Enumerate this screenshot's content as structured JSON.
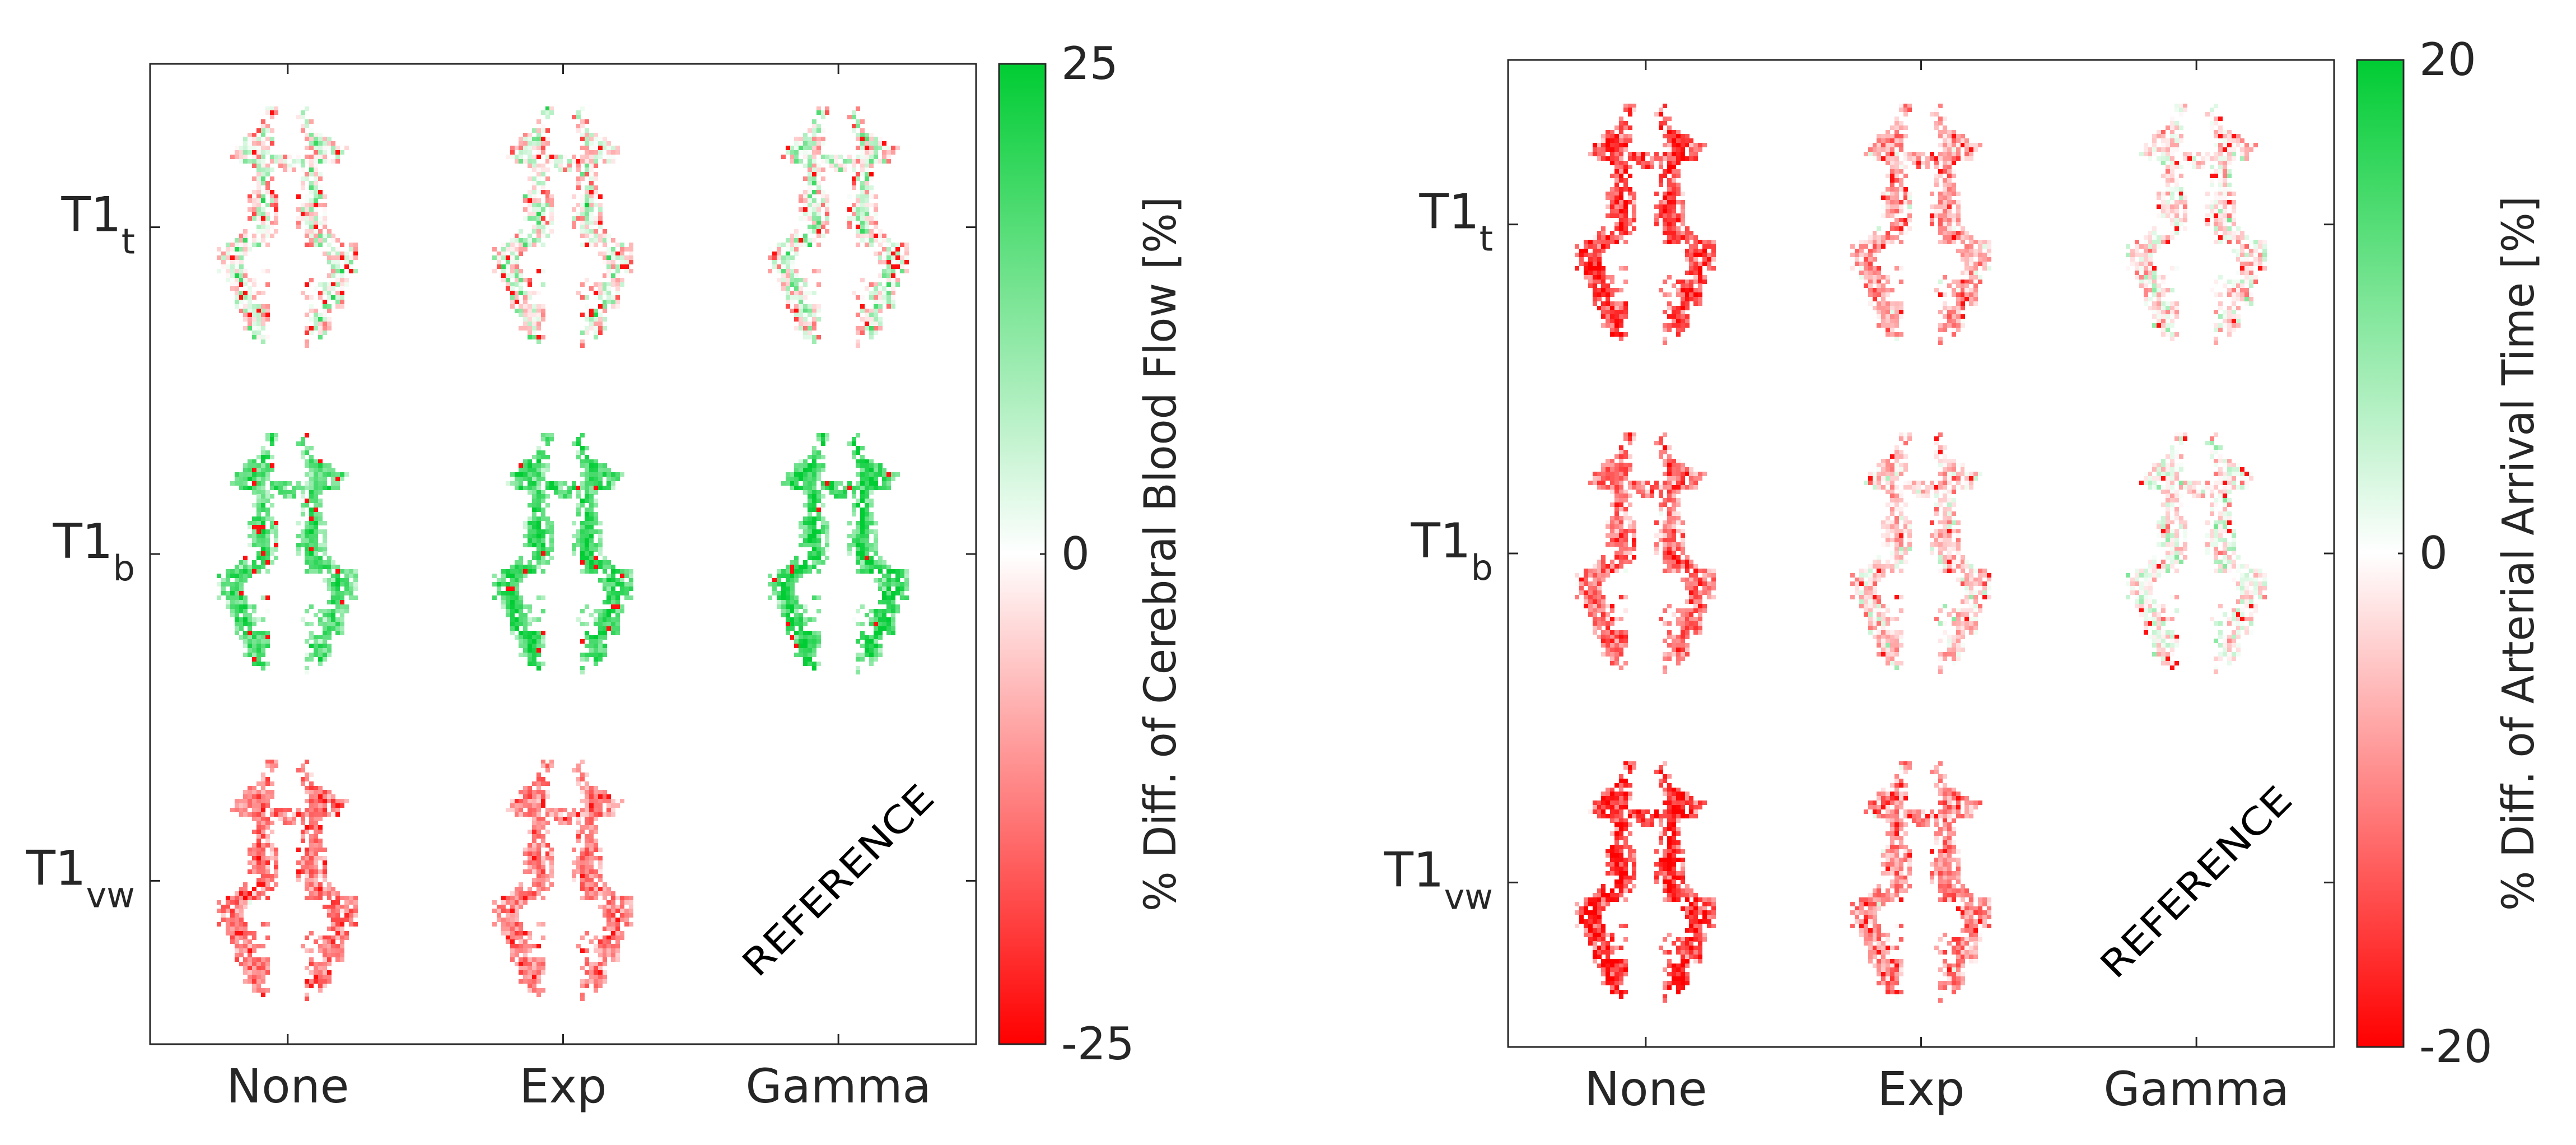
{
  "chart_data": [
    {
      "type": "heatmap",
      "title": "",
      "x_categories": [
        "None",
        "Exp",
        "Gamma"
      ],
      "y_categories": [
        {
          "main": "T1",
          "sub": "t"
        },
        {
          "main": "T1",
          "sub": "b"
        },
        {
          "main": "T1",
          "sub": "vw"
        }
      ],
      "reference_label": "REFERENCE",
      "reference_cell": {
        "row": 2,
        "col": 2
      },
      "colorbar": {
        "label": "% Diff. of Cerebral Blood Flow [%]",
        "min": -25,
        "max": 25,
        "ticks": [
          25,
          0,
          -25
        ],
        "tick_labels": [
          "25",
          "0",
          "-25"
        ],
        "colors": {
          "negative": "#ff0000",
          "zero": "#ffffff",
          "positive": "#00cc33"
        }
      },
      "cells": [
        [
          {
            "mean": -6,
            "core": 11,
            "spread": 7
          },
          {
            "mean": -6,
            "core": 11,
            "spread": 7
          },
          {
            "mean": -5,
            "core": 11,
            "spread": 7
          }
        ],
        [
          {
            "mean": 10,
            "core": 10,
            "spread": 4
          },
          {
            "mean": 12,
            "core": 11,
            "spread": 4
          },
          {
            "mean": 12,
            "core": 12,
            "spread": 4
          }
        ],
        [
          {
            "mean": -11,
            "core": -3,
            "spread": 4
          },
          {
            "mean": -10,
            "core": -3,
            "spread": 4
          },
          null
        ]
      ]
    },
    {
      "type": "heatmap",
      "title": "",
      "x_categories": [
        "None",
        "Exp",
        "Gamma"
      ],
      "y_categories": [
        {
          "main": "T1",
          "sub": "t"
        },
        {
          "main": "T1",
          "sub": "b"
        },
        {
          "main": "T1",
          "sub": "vw"
        }
      ],
      "reference_label": "REFERENCE",
      "reference_cell": {
        "row": 2,
        "col": 2
      },
      "colorbar": {
        "label": "% Diff. of Arterial Arrival Time [%]",
        "min": -20,
        "max": 20,
        "ticks": [
          20,
          0,
          -20
        ],
        "tick_labels": [
          "20",
          "0",
          "-20"
        ],
        "colors": {
          "negative": "#ff0000",
          "zero": "#ffffff",
          "positive": "#00cc33"
        }
      },
      "cells": [
        [
          {
            "mean": -11,
            "core": -6,
            "spread": 4
          },
          {
            "mean": -5,
            "core": -3,
            "spread": 4
          },
          {
            "mean": -2,
            "core": 0,
            "spread": 4
          }
        ],
        [
          {
            "mean": -8,
            "core": -4,
            "spread": 4
          },
          {
            "mean": -3,
            "core": -1,
            "spread": 4
          },
          {
            "mean": -1,
            "core": 1,
            "spread": 4
          }
        ],
        [
          {
            "mean": -12,
            "core": -7,
            "spread": 4
          },
          {
            "mean": -7,
            "core": -3,
            "spread": 4
          },
          null
        ]
      ]
    }
  ]
}
